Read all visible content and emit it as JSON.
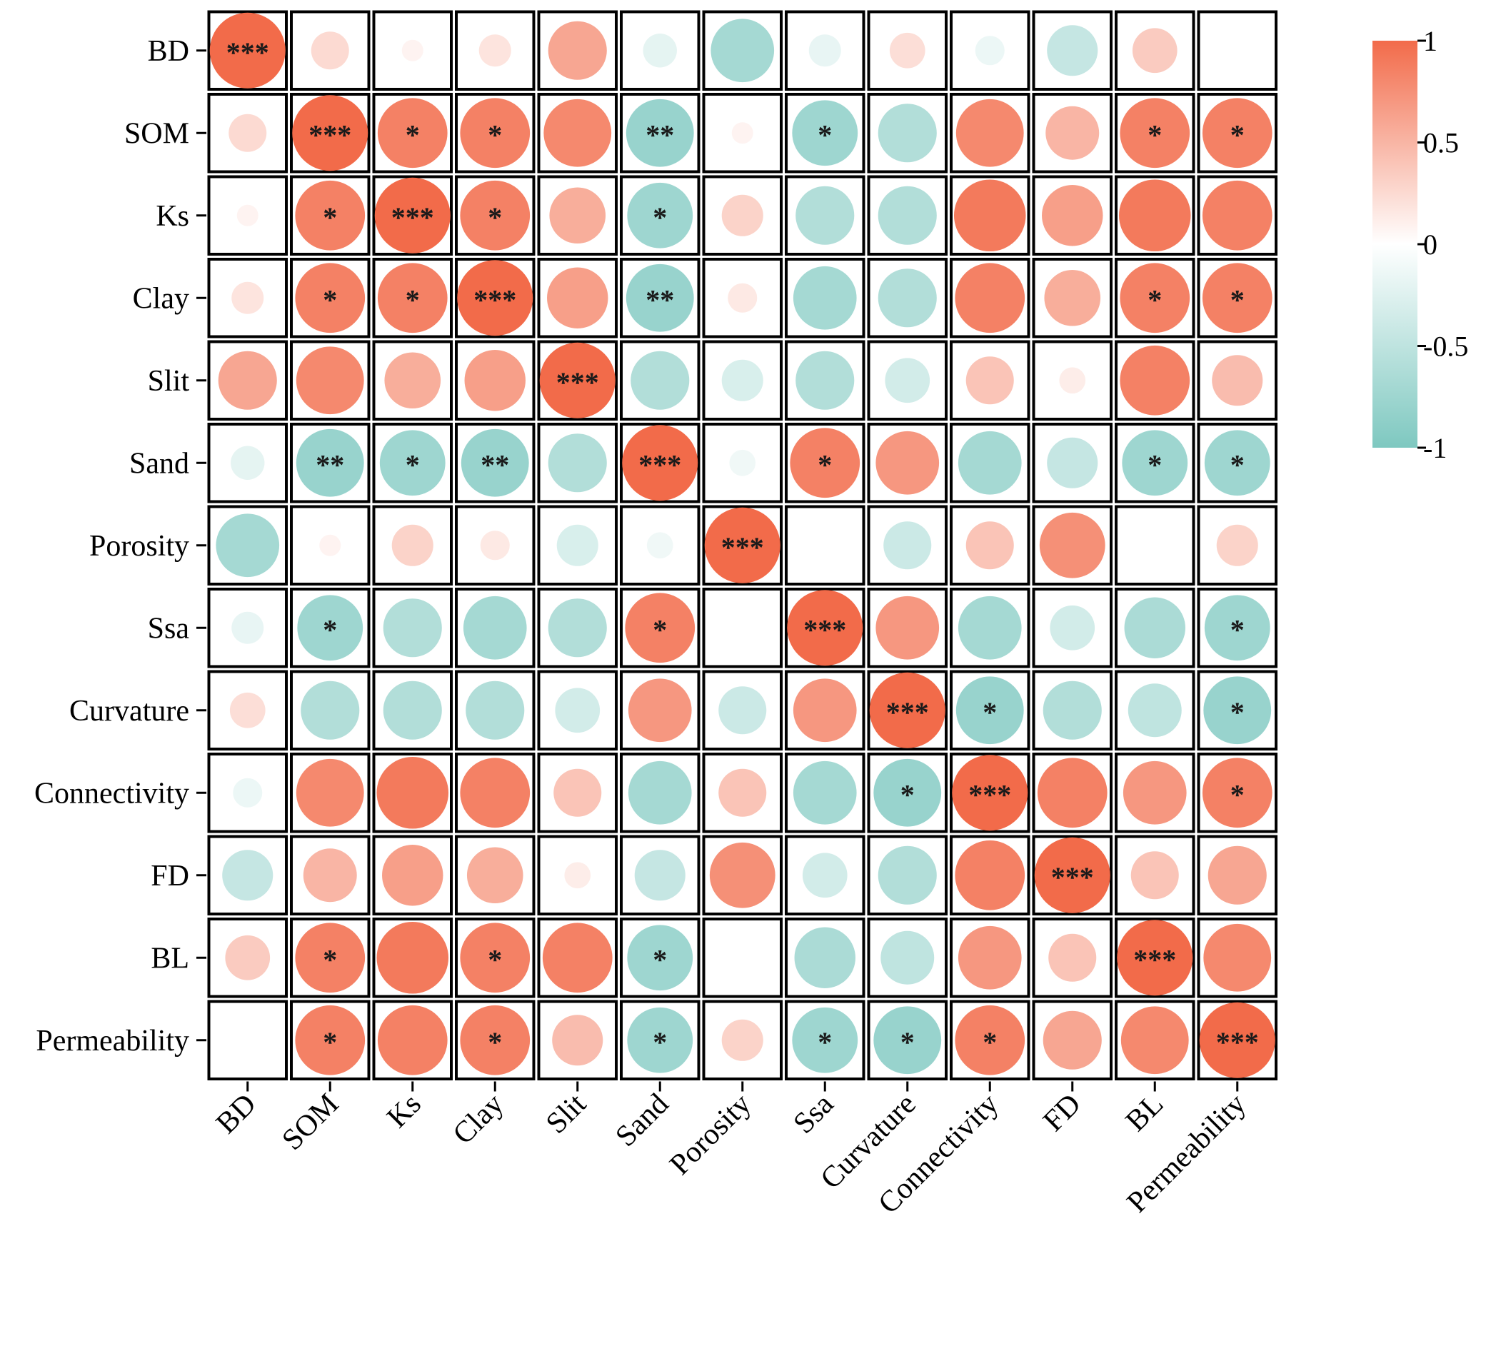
{
  "chart_data": {
    "type": "heatmap",
    "style": "circle-correlation-matrix",
    "title": "",
    "variables": [
      "BD",
      "SOM",
      "Ks",
      "Clay",
      "Slit",
      "Sand",
      "Porosity",
      "Ssa",
      "Curvature",
      "Connectivity",
      "FD",
      "BL",
      "Permeability"
    ],
    "matrix": [
      [
        1.0,
        0.25,
        0.08,
        0.18,
        0.6,
        -0.2,
        -0.7,
        -0.18,
        0.22,
        -0.15,
        -0.45,
        0.35,
        0.0
      ],
      [
        0.25,
        1.0,
        0.85,
        0.85,
        0.8,
        -0.8,
        0.08,
        -0.75,
        -0.6,
        0.8,
        0.5,
        0.85,
        0.85
      ],
      [
        0.08,
        0.85,
        1.0,
        0.85,
        0.55,
        -0.75,
        0.3,
        -0.6,
        -0.6,
        0.9,
        0.65,
        0.9,
        0.85
      ],
      [
        0.18,
        0.85,
        0.85,
        1.0,
        0.65,
        -0.8,
        0.15,
        -0.7,
        -0.6,
        0.85,
        0.55,
        0.85,
        0.85
      ],
      [
        0.6,
        0.8,
        0.55,
        0.65,
        1.0,
        -0.6,
        -0.3,
        -0.6,
        -0.35,
        0.4,
        0.12,
        0.85,
        0.45
      ],
      [
        -0.2,
        -0.8,
        -0.75,
        -0.8,
        -0.6,
        1.0,
        -0.12,
        0.85,
        0.7,
        -0.7,
        -0.45,
        -0.75,
        -0.75
      ],
      [
        -0.7,
        0.08,
        0.3,
        0.15,
        -0.3,
        -0.12,
        1.0,
        0.0,
        -0.4,
        0.4,
        0.75,
        0.0,
        0.3
      ],
      [
        -0.18,
        -0.75,
        -0.6,
        -0.7,
        -0.6,
        0.85,
        0.0,
        1.0,
        0.7,
        -0.7,
        -0.35,
        -0.65,
        -0.75
      ],
      [
        0.22,
        -0.6,
        -0.6,
        -0.6,
        -0.35,
        0.7,
        -0.4,
        0.7,
        1.0,
        -0.8,
        -0.6,
        -0.5,
        -0.8
      ],
      [
        -0.15,
        0.8,
        0.9,
        0.85,
        0.4,
        -0.7,
        0.4,
        -0.7,
        -0.8,
        1.0,
        0.85,
        0.7,
        0.85
      ],
      [
        -0.45,
        0.5,
        0.65,
        0.55,
        0.12,
        -0.45,
        0.75,
        -0.35,
        -0.6,
        0.85,
        1.0,
        0.4,
        0.6
      ],
      [
        0.35,
        0.85,
        0.9,
        0.85,
        0.85,
        -0.75,
        0.0,
        -0.65,
        -0.5,
        0.7,
        0.4,
        1.0,
        0.8
      ],
      [
        0.0,
        0.85,
        0.85,
        0.85,
        0.45,
        -0.75,
        0.3,
        -0.75,
        -0.8,
        0.85,
        0.6,
        0.8,
        1.0
      ]
    ],
    "significance": [
      [
        "***",
        "",
        "",
        "",
        "",
        "",
        "",
        "",
        "",
        "",
        "",
        "",
        ""
      ],
      [
        "",
        "***",
        "*",
        "*",
        "",
        "**",
        "",
        "*",
        "",
        "",
        "",
        "*",
        "*"
      ],
      [
        "",
        "*",
        "***",
        "*",
        "",
        "*",
        "",
        "",
        "",
        "",
        "",
        "",
        ""
      ],
      [
        "",
        "*",
        "*",
        "***",
        "",
        "**",
        "",
        "",
        "",
        "",
        "",
        "*",
        "*"
      ],
      [
        "",
        "",
        "",
        "",
        "***",
        "",
        "",
        "",
        "",
        "",
        "",
        "",
        ""
      ],
      [
        "",
        "**",
        "*",
        "**",
        "",
        "***",
        "",
        "*",
        "",
        "",
        "",
        "*",
        "*"
      ],
      [
        "",
        "",
        "",
        "",
        "",
        "",
        "***",
        "",
        "",
        "",
        "",
        "",
        ""
      ],
      [
        "",
        "*",
        "",
        "",
        "",
        "*",
        "",
        "***",
        "",
        "",
        "",
        "",
        "*"
      ],
      [
        "",
        "",
        "",
        "",
        "",
        "",
        "",
        "",
        "***",
        "*",
        "",
        "",
        "*"
      ],
      [
        "",
        "",
        "",
        "",
        "",
        "",
        "",
        "",
        "*",
        "***",
        "",
        "",
        "*"
      ],
      [
        "",
        "",
        "",
        "",
        "",
        "",
        "",
        "",
        "",
        "",
        "***",
        "",
        ""
      ],
      [
        "",
        "*",
        "",
        "*",
        "",
        "*",
        "",
        "",
        "",
        "",
        "",
        "***",
        ""
      ],
      [
        "",
        "*",
        "",
        "*",
        "",
        "*",
        "",
        "*",
        "*",
        "*",
        "",
        "",
        "***"
      ]
    ],
    "colorbar": {
      "range": [
        -1,
        1
      ],
      "ticks": [
        "1",
        "0.5",
        "0",
        "-0.5",
        "-1"
      ],
      "colors": {
        "positive": "#F26B4A",
        "neutral": "#FFFFFF",
        "negative": "#7EC8C0"
      }
    },
    "colors": {
      "grid_border": "#000000",
      "text": "#000000"
    }
  }
}
